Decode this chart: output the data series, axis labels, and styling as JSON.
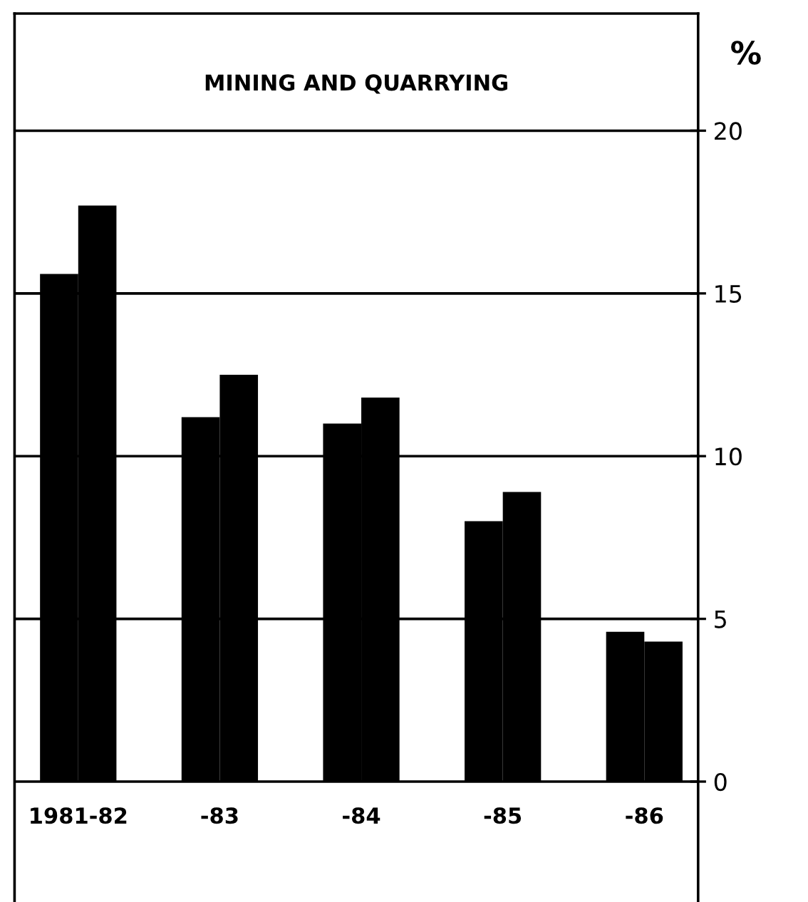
{
  "chart_data": {
    "type": "bar",
    "title": "MINING AND QUARRYING",
    "ylabel": "%",
    "categories": [
      "1981-82",
      "-83",
      "-84",
      "-85",
      "-86"
    ],
    "series": [
      {
        "color": "#000000",
        "values": [
          15.6,
          11.2,
          11.0,
          8.0,
          4.6
        ]
      },
      {
        "color": "#000000",
        "values": [
          17.7,
          12.5,
          11.8,
          8.9,
          4.3
        ]
      }
    ],
    "ylim": [
      -3.7,
      23.6
    ],
    "yticks": [
      0,
      5,
      10,
      15,
      20
    ],
    "grid": "y",
    "legend": false
  }
}
